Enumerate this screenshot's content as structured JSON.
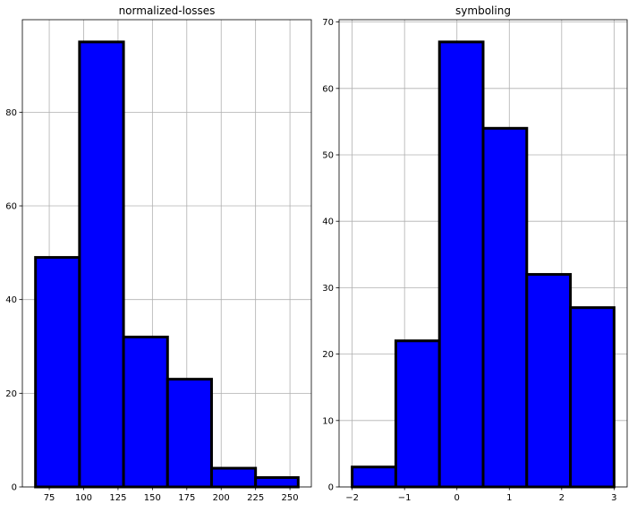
{
  "chart_data": [
    {
      "type": "bar",
      "subtype": "histogram",
      "title": "normalized-losses",
      "xlabel": "",
      "ylabel": "",
      "bin_edges": [
        65.0,
        97.0,
        129.0,
        161.0,
        193.0,
        225.0,
        256.0
      ],
      "counts": [
        49,
        95,
        32,
        23,
        4,
        2
      ],
      "xlim": [
        55.45,
        265.55
      ],
      "ylim": [
        0,
        99.75
      ],
      "xticks": [
        75,
        100,
        125,
        150,
        175,
        200,
        225,
        250
      ],
      "xtick_labels": [
        "75",
        "100",
        "125",
        "150",
        "175",
        "200",
        "225",
        "250"
      ],
      "yticks": [
        0,
        20,
        40,
        60,
        80
      ],
      "ytick_labels": [
        "0",
        "20",
        "40",
        "60",
        "80"
      ],
      "grid": true,
      "bar_color": "#0000ff",
      "edge_color": "#000000"
    },
    {
      "type": "bar",
      "subtype": "histogram",
      "title": "symboling",
      "xlabel": "",
      "ylabel": "",
      "bin_edges": [
        -2.0,
        -1.1667,
        -0.3333,
        0.5,
        1.3333,
        2.1667,
        3.0
      ],
      "counts": [
        3,
        22,
        67,
        54,
        32,
        27
      ],
      "xlim": [
        -2.25,
        3.25
      ],
      "ylim": [
        0,
        70.35
      ],
      "xticks": [
        -2,
        -1,
        0,
        1,
        2,
        3
      ],
      "xtick_labels": [
        "−2",
        "−1",
        "0",
        "1",
        "2",
        "3"
      ],
      "yticks": [
        0,
        10,
        20,
        30,
        40,
        50,
        60,
        70
      ],
      "ytick_labels": [
        "0",
        "10",
        "20",
        "30",
        "40",
        "50",
        "60",
        "70"
      ],
      "grid": true,
      "bar_color": "#0000ff",
      "edge_color": "#000000"
    }
  ]
}
